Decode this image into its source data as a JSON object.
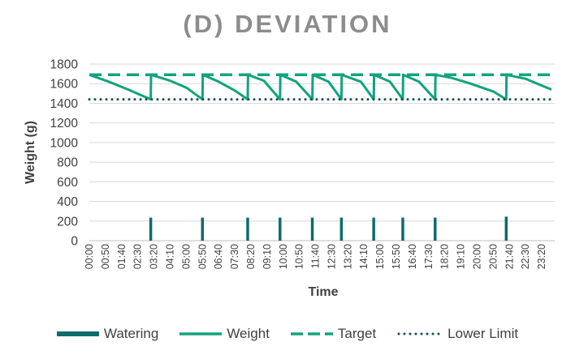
{
  "chart_data": {
    "type": "line",
    "title": "(D) DEVIATION",
    "xlabel": "Time",
    "ylabel": "Weight (g)",
    "ylim": [
      0,
      1800
    ],
    "yticks": [
      0,
      200,
      400,
      600,
      800,
      1000,
      1200,
      1400,
      1600,
      1800
    ],
    "xticks": [
      "00:00",
      "00:50",
      "01:40",
      "02:30",
      "03:20",
      "04:10",
      "05:00",
      "05:50",
      "06:40",
      "07:30",
      "08:20",
      "09:10",
      "10:00",
      "10:50",
      "11:40",
      "12:30",
      "13:20",
      "14:10",
      "15:00",
      "15:50",
      "16:40",
      "17:30",
      "18:20",
      "19:10",
      "20:00",
      "20:50",
      "21:40",
      "22:30",
      "23:20"
    ],
    "grid": true,
    "legend_position": "bottom",
    "colors": {
      "watering": "#0f6b6b",
      "weight": "#10a37f",
      "target": "#10a37f",
      "lower_limit": "#0d4f5a"
    },
    "series": [
      {
        "name": "Weight",
        "style": "solid",
        "x": [
          "00:00",
          "01:00",
          "02:00",
          "03:10",
          "03:11",
          "04:10",
          "05:00",
          "05:50",
          "05:51",
          "06:40",
          "07:30",
          "08:10",
          "08:11",
          "09:00",
          "09:50",
          "09:51",
          "10:40",
          "11:30",
          "11:31",
          "12:20",
          "13:00",
          "13:01",
          "14:00",
          "14:40",
          "14:41",
          "15:30",
          "16:10",
          "16:11",
          "17:00",
          "17:50",
          "17:51",
          "18:40",
          "19:40",
          "20:50",
          "21:30",
          "21:31",
          "22:30",
          "23:50"
        ],
        "y": [
          1690,
          1620,
          1540,
          1440,
          1690,
          1630,
          1560,
          1440,
          1690,
          1620,
          1530,
          1440,
          1690,
          1630,
          1440,
          1690,
          1620,
          1440,
          1690,
          1620,
          1440,
          1690,
          1620,
          1440,
          1690,
          1620,
          1440,
          1690,
          1620,
          1440,
          1690,
          1660,
          1600,
          1520,
          1440,
          1690,
          1650,
          1540
        ]
      },
      {
        "name": "Target",
        "style": "dashed",
        "x": [
          "00:00",
          "23:50"
        ],
        "y": [
          1690,
          1690
        ]
      },
      {
        "name": "Lower Limit",
        "style": "dotted",
        "x": [
          "00:00",
          "23:50"
        ],
        "y": [
          1440,
          1440
        ]
      },
      {
        "name": "Watering",
        "style": "spikes",
        "x": [
          "03:10",
          "05:50",
          "08:10",
          "09:50",
          "11:30",
          "13:00",
          "14:40",
          "16:10",
          "17:50",
          "21:30"
        ],
        "y": [
          235,
          235,
          235,
          235,
          235,
          235,
          235,
          235,
          235,
          245
        ]
      }
    ],
    "legend": [
      "Watering",
      "Weight",
      "Target",
      "Lower Limit"
    ]
  }
}
